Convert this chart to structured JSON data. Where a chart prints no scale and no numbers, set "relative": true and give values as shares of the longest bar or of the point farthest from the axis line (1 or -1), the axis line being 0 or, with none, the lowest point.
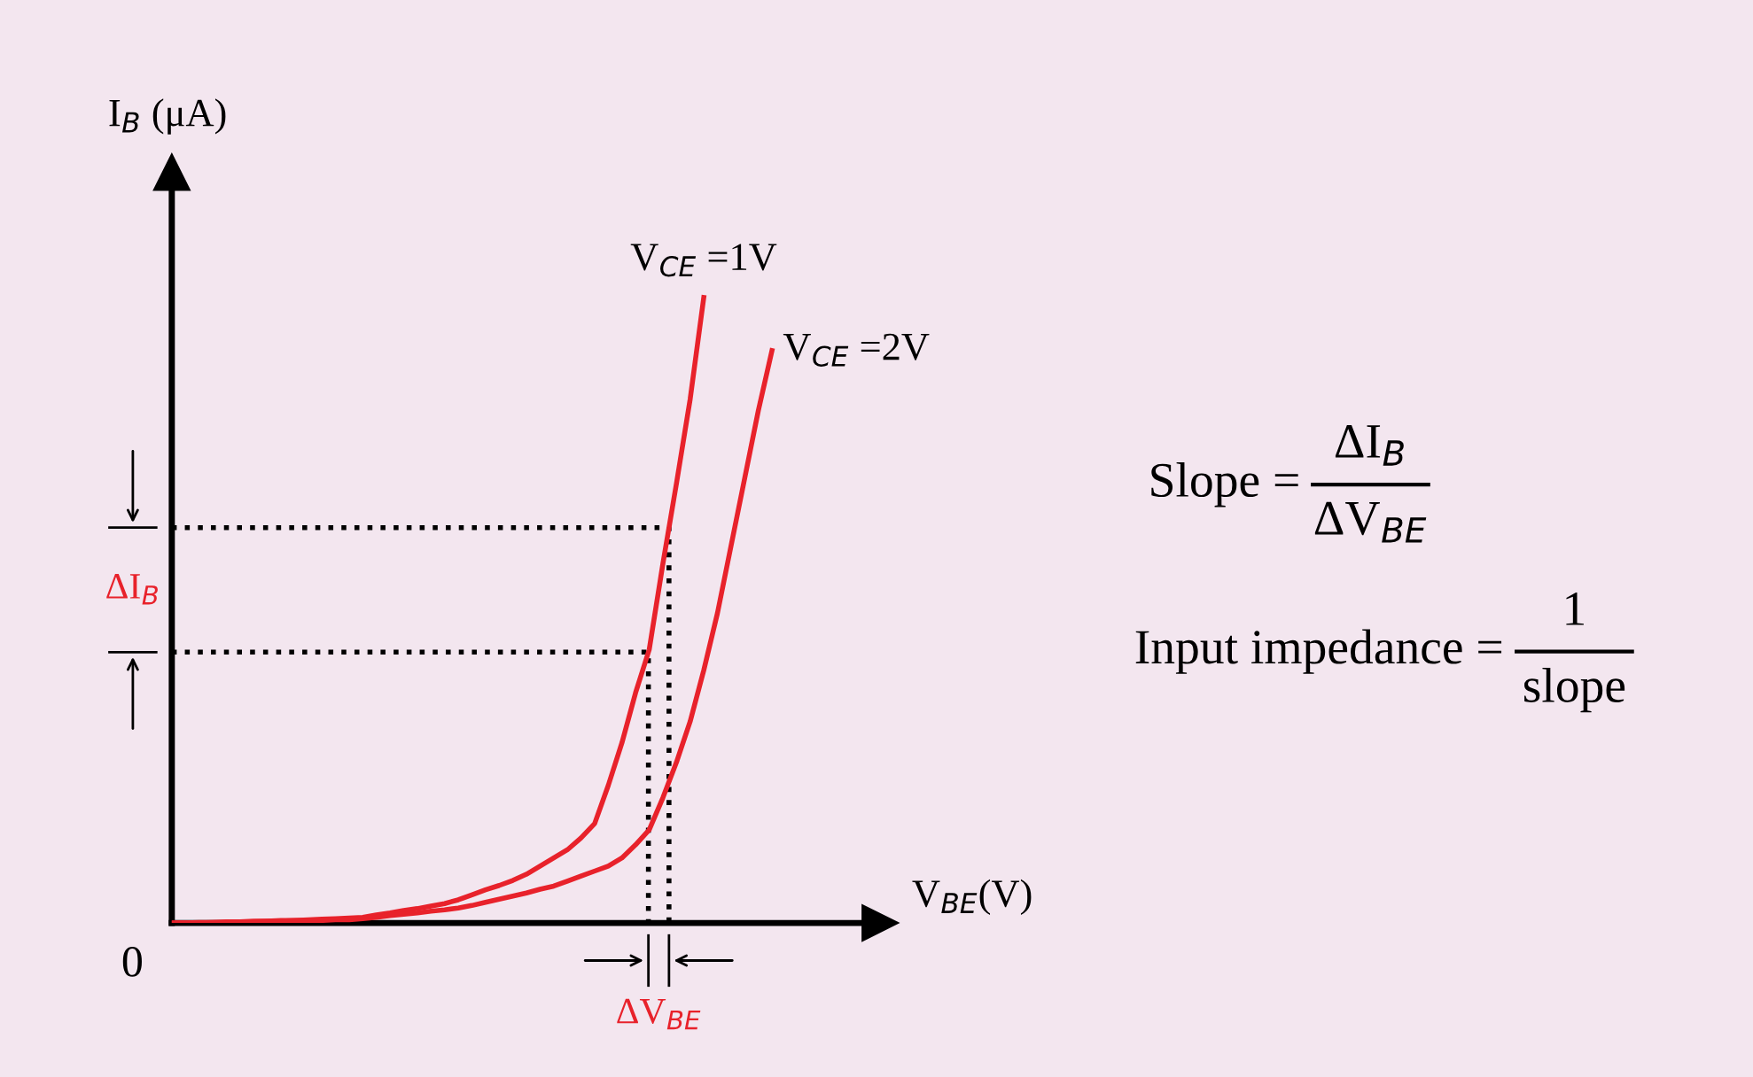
{
  "chart_data": {
    "type": "line",
    "relative": true,
    "tick_labels": false,
    "marker": "none",
    "line_style": "solid",
    "xlabel": "V$_{BE}$(V)",
    "ylabel": "I$_{B}$ (μA)",
    "categories": [
      null,
      null,
      null,
      null,
      null,
      null,
      null,
      null,
      null,
      null,
      null,
      null,
      null,
      null,
      null,
      null,
      null,
      null,
      null,
      null,
      null,
      null,
      null,
      null,
      null,
      null,
      null,
      null,
      null,
      null,
      null,
      null,
      null,
      null,
      null,
      null,
      null,
      null,
      null,
      null,
      null,
      null,
      null,
      null,
      null
    ],
    "series": [
      {
        "name": "V$_{CE}$ =1V",
        "color": "#e8222b",
        "values": [
          0,
          0.0,
          0.001,
          0.001,
          0.002,
          0.002,
          0.003,
          0.003,
          0.004,
          0.004,
          0.005,
          0.006,
          0.007,
          0.008,
          0.009,
          0.013,
          0.016,
          0.02,
          0.023,
          0.027,
          0.031,
          0.037,
          0.045,
          0.053,
          0.06,
          0.068,
          0.078,
          0.091,
          0.104,
          0.117,
          0.136,
          0.159,
          0.22,
          0.288,
          0.368,
          0.437,
          0.574,
          0.703,
          0.837,
          1.0,
          null,
          null,
          null,
          null,
          null
        ]
      },
      {
        "name": "V$_{CE}$ =2V",
        "color": "#e8222b",
        "values": [
          0,
          0.0,
          0.0,
          0.001,
          0.001,
          0.002,
          0.002,
          0.003,
          0.003,
          0.004,
          0.004,
          0.004,
          0.005,
          0.005,
          0.007,
          0.009,
          0.012,
          0.014,
          0.016,
          0.019,
          0.021,
          0.024,
          0.028,
          0.033,
          0.038,
          0.043,
          0.048,
          0.054,
          0.059,
          0.067,
          0.075,
          0.083,
          0.091,
          0.104,
          0.125,
          0.149,
          0.2,
          0.257,
          0.322,
          0.404,
          0.495,
          0.603,
          0.711,
          0.819,
          0.915
        ]
      }
    ],
    "ref_lines": [
      {
        "axis": "y",
        "value": 0.632,
        "line_style": "dotted",
        "color": "#000000"
      },
      {
        "axis": "y",
        "value": 0.433,
        "line_style": "dotted",
        "color": "#000000"
      }
    ],
    "annotations": [
      "0",
      "ΔI$_{B}$",
      "ΔV$_{BE}$",
      "Slope =",
      "ΔI$_{B}$",
      "ΔV$_{BE}$",
      "Input impedance =",
      "1",
      "slope"
    ]
  }
}
